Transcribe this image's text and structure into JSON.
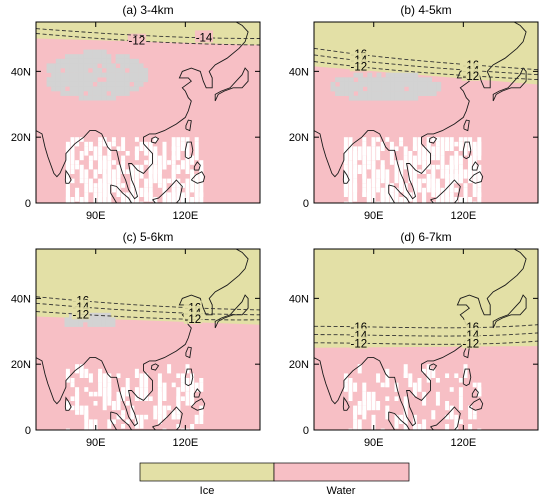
{
  "map": {
    "x_ticks": [
      "90E",
      "120E"
    ],
    "y_ticks": [
      "0",
      "20N",
      "40N"
    ],
    "x_range_deg": [
      70,
      145
    ],
    "y_range_deg": [
      0,
      55
    ],
    "panels": [
      {
        "title": "(a) 3-4km",
        "contours": [
          {
            "label": "-12",
            "lat_west": 51.5,
            "lat_east": 48.0
          },
          {
            "label": "-14",
            "lat_west": 53.0,
            "lat_east": 50.0
          }
        ],
        "ice_fraction": 0.2
      },
      {
        "title": "(b) 4-5km",
        "contours": [
          {
            "label": "-16",
            "lat_west": 47.0,
            "lat_east": 40.5
          },
          {
            "label": "-14",
            "lat_west": 45.0,
            "lat_east": 39.0
          },
          {
            "label": "-12",
            "lat_west": 43.0,
            "lat_east": 37.5
          }
        ],
        "ice_fraction": 0.35
      },
      {
        "title": "(c) 5-6km",
        "contours": [
          {
            "label": "-16",
            "lat_west": 40.5,
            "lat_east": 36.5
          },
          {
            "label": "-14",
            "lat_west": 38.5,
            "lat_east": 35.0
          },
          {
            "label": "-12",
            "lat_west": 36.0,
            "lat_east": 33.5
          }
        ],
        "ice_fraction": 0.45
      },
      {
        "title": "(d) 6-7km",
        "contours": [
          {
            "label": "-16",
            "lat_west": 31.5,
            "lat_east": 32.0
          },
          {
            "label": "-14",
            "lat_west": 29.0,
            "lat_east": 29.5
          },
          {
            "label": "-12",
            "lat_west": 26.5,
            "lat_east": 27.0
          }
        ],
        "ice_fraction": 0.6
      }
    ],
    "legend": [
      {
        "label": "Ice",
        "color": "#e3e0a6"
      },
      {
        "label": "Water",
        "color": "#f7bfc5"
      }
    ],
    "colors": {
      "ice": "#e3e0a6",
      "water": "#f7bfc5",
      "mixed": "#d3d3d3"
    }
  }
}
